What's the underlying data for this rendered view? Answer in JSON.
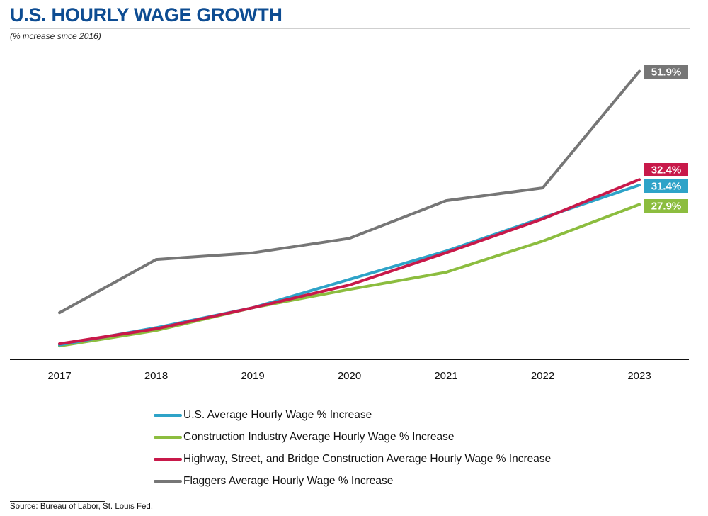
{
  "colors": {
    "title": "#0d4c92",
    "axis": "#111111"
  },
  "chart_data": {
    "type": "line",
    "title": "U.S. HOURLY WAGE GROWTH",
    "subtitle": "(% increase since 2016)",
    "xlabel": "",
    "ylabel": "",
    "x": [
      "2017",
      "2018",
      "2019",
      "2020",
      "2021",
      "2022",
      "2023"
    ],
    "ylim": [
      0,
      60
    ],
    "grid": false,
    "legend_position": "bottom",
    "series": [
      {
        "name": "U.S. Average Hourly Wage % Increase",
        "color": "#2ea3c8",
        "values": [
          2.6,
          5.7,
          9.3,
          14.4,
          19.5,
          25.5,
          31.4
        ],
        "end_label": "31.4%"
      },
      {
        "name": "Construction Industry Average Hourly Wage % Increase",
        "color": "#8cbd3f",
        "values": [
          2.4,
          5.2,
          9.3,
          12.6,
          15.7,
          21.3,
          27.9
        ],
        "end_label": "27.9%"
      },
      {
        "name": "Highway, Street, and Bridge Construction Average Hourly Wage % Increase",
        "color": "#c8194a",
        "values": [
          2.8,
          5.5,
          9.3,
          13.4,
          19.2,
          25.3,
          32.4
        ],
        "end_label": "32.4%"
      },
      {
        "name": "Flaggers Average Hourly Wage % Increase",
        "color": "#767676",
        "values": [
          8.4,
          18.0,
          19.2,
          21.8,
          28.6,
          30.9,
          51.9
        ],
        "end_label": "51.9%"
      }
    ],
    "source": "Source: Bureau of Labor, St. Louis Fed."
  }
}
